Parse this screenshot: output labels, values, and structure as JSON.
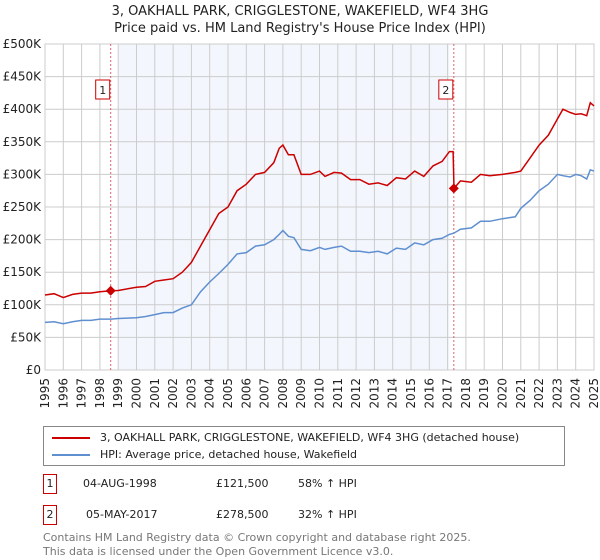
{
  "title": "3, OAKHALL PARK, CRIGGLESTONE, WAKEFIELD, WF4 3HG",
  "subtitle": "Price paid vs. HM Land Registry's House Price Index (HPI)",
  "chart_data": {
    "type": "line",
    "title": "3, OAKHALL PARK, CRIGGLESTONE, WAKEFIELD, WF4 3HG",
    "subtitle": "Price paid vs. HM Land Registry's House Price Index (HPI)",
    "xlim": [
      1995,
      2025
    ],
    "ylim": [
      0,
      500000
    ],
    "y_ticks": [
      0,
      50000,
      100000,
      150000,
      200000,
      250000,
      300000,
      350000,
      400000,
      450000,
      500000
    ],
    "y_tick_labels": [
      "£0",
      "£50K",
      "£100K",
      "£150K",
      "£200K",
      "£250K",
      "£300K",
      "£350K",
      "£400K",
      "£450K",
      "£500K"
    ],
    "x_tick_labels": [
      "1995",
      "1996",
      "1997",
      "1998",
      "1999",
      "2000",
      "2001",
      "2002",
      "2003",
      "2004",
      "2005",
      "2006",
      "2007",
      "2008",
      "2009",
      "2010",
      "2011",
      "2012",
      "2013",
      "2014",
      "2015",
      "2016",
      "2017",
      "2018",
      "2019",
      "2020",
      "2021",
      "2022",
      "2023",
      "2024",
      "2025"
    ],
    "grid": true,
    "shaded_range": [
      1999.0,
      2017.1
    ],
    "legend_placement": "below",
    "series": [
      {
        "name": "3, OAKHALL PARK, CRIGGLESTONE, WAKEFIELD, WF4 3HG (detached house)",
        "color": "#cc0000",
        "x": [
          1995,
          1995.5,
          1996,
          1996.5,
          1997,
          1997.5,
          1998,
          1998.6,
          1999,
          2000,
          2000.5,
          2001,
          2001.5,
          2002,
          2002.5,
          2003,
          2003.5,
          2004,
          2004.5,
          2005,
          2005.5,
          2006,
          2006.5,
          2007,
          2007.5,
          2007.8,
          2008,
          2008.3,
          2008.6,
          2009,
          2009.5,
          2010,
          2010.3,
          2010.8,
          2011.2,
          2011.7,
          2012.2,
          2012.7,
          2013.2,
          2013.7,
          2014.2,
          2014.7,
          2015.2,
          2015.7,
          2016.2,
          2016.7,
          2017.1,
          2017.3,
          2017.35,
          2017.7,
          2018.3,
          2018.8,
          2019.3,
          2020,
          2020.7,
          2021,
          2021.5,
          2022,
          2022.5,
          2023,
          2023.3,
          2023.7,
          2024,
          2024.3,
          2024.6,
          2024.8,
          2025
        ],
        "values": [
          115000,
          117000,
          111000,
          116000,
          118000,
          118000,
          120000,
          121500,
          122000,
          127000,
          128000,
          136000,
          138000,
          140000,
          150000,
          165000,
          190000,
          215000,
          240000,
          250000,
          275000,
          285000,
          300000,
          303000,
          318000,
          340000,
          345000,
          330000,
          330000,
          300000,
          300000,
          305000,
          297000,
          303000,
          302000,
          292000,
          292000,
          285000,
          287000,
          283000,
          295000,
          293000,
          305000,
          297000,
          313000,
          320000,
          335000,
          335000,
          278500,
          290000,
          288000,
          300000,
          298000,
          300000,
          303000,
          305000,
          325000,
          345000,
          360000,
          385000,
          400000,
          395000,
          392000,
          393000,
          390000,
          410000,
          405000
        ]
      },
      {
        "name": "HPI: Average price, detached house, Wakefield",
        "color": "#5f8fd0",
        "x": [
          1995,
          1995.5,
          1996,
          1996.5,
          1997,
          1997.5,
          1998,
          1998.6,
          1999,
          2000,
          2000.5,
          2001,
          2001.5,
          2002,
          2002.5,
          2003,
          2003.5,
          2004,
          2004.5,
          2005,
          2005.5,
          2006,
          2006.5,
          2007,
          2007.5,
          2007.8,
          2008,
          2008.3,
          2008.6,
          2009,
          2009.5,
          2010,
          2010.3,
          2010.8,
          2011.2,
          2011.7,
          2012.2,
          2012.7,
          2013.2,
          2013.7,
          2014.2,
          2014.7,
          2015.2,
          2015.7,
          2016.2,
          2016.7,
          2017.1,
          2017.35,
          2017.7,
          2018.3,
          2018.8,
          2019.3,
          2020,
          2020.7,
          2021,
          2021.5,
          2022,
          2022.5,
          2023,
          2023.3,
          2023.7,
          2024,
          2024.3,
          2024.6,
          2024.8,
          2025
        ],
        "values": [
          73000,
          74000,
          71000,
          74000,
          76000,
          76000,
          78000,
          78000,
          79000,
          80000,
          82000,
          85000,
          88000,
          88000,
          95000,
          100000,
          120000,
          135000,
          148000,
          162000,
          178000,
          180000,
          190000,
          192000,
          200000,
          208000,
          214000,
          205000,
          203000,
          185000,
          183000,
          188000,
          185000,
          188000,
          190000,
          182000,
          182000,
          180000,
          182000,
          178000,
          187000,
          185000,
          195000,
          192000,
          200000,
          202000,
          208000,
          210000,
          216000,
          218000,
          228000,
          228000,
          232000,
          235000,
          248000,
          260000,
          275000,
          285000,
          300000,
          298000,
          296000,
          300000,
          298000,
          293000,
          307000,
          305000
        ]
      }
    ],
    "annotations": [
      {
        "label": "1",
        "x": 1998.59,
        "value": 121500
      },
      {
        "label": "2",
        "x": 2017.34,
        "value": 278500
      }
    ]
  },
  "legend": [
    {
      "label": "3, OAKHALL PARK, CRIGGLESTONE, WAKEFIELD, WF4 3HG (detached house)",
      "color": "#cc0000"
    },
    {
      "label": "HPI: Average price, detached house, Wakefield",
      "color": "#5f8fd0"
    }
  ],
  "transactions": [
    {
      "num": "1",
      "date": "04-AUG-1998",
      "price": "£121,500",
      "hpi": "58% ↑ HPI"
    },
    {
      "num": "2",
      "date": "05-MAY-2017",
      "price": "£278,500",
      "hpi": "32% ↑ HPI"
    }
  ],
  "footer": {
    "line1": "Contains HM Land Registry data © Crown copyright and database right 2025.",
    "line2": "This data is licensed under the Open Government Licence v3.0."
  }
}
